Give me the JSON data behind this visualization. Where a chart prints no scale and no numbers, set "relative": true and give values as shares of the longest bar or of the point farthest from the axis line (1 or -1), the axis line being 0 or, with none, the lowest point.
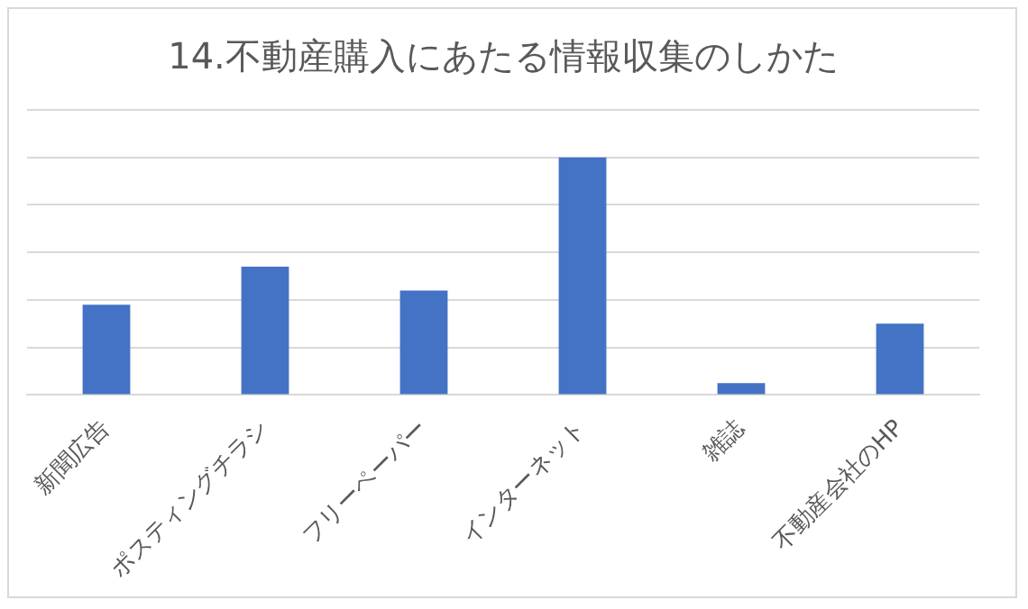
{
  "chart_data": {
    "type": "bar",
    "title": "14.不動産購入にあたる情報収集のしかた",
    "categories": [
      "新聞広告",
      "ポスティングチラシ",
      "フリーペーパー",
      "インターネット",
      "雑誌",
      "不動産会社のHP"
    ],
    "values": [
      0.38,
      0.54,
      0.44,
      1,
      0.05,
      0.3
    ],
    "color": "#4472c4",
    "relative": true,
    "grid": "y",
    "legend": false
  }
}
